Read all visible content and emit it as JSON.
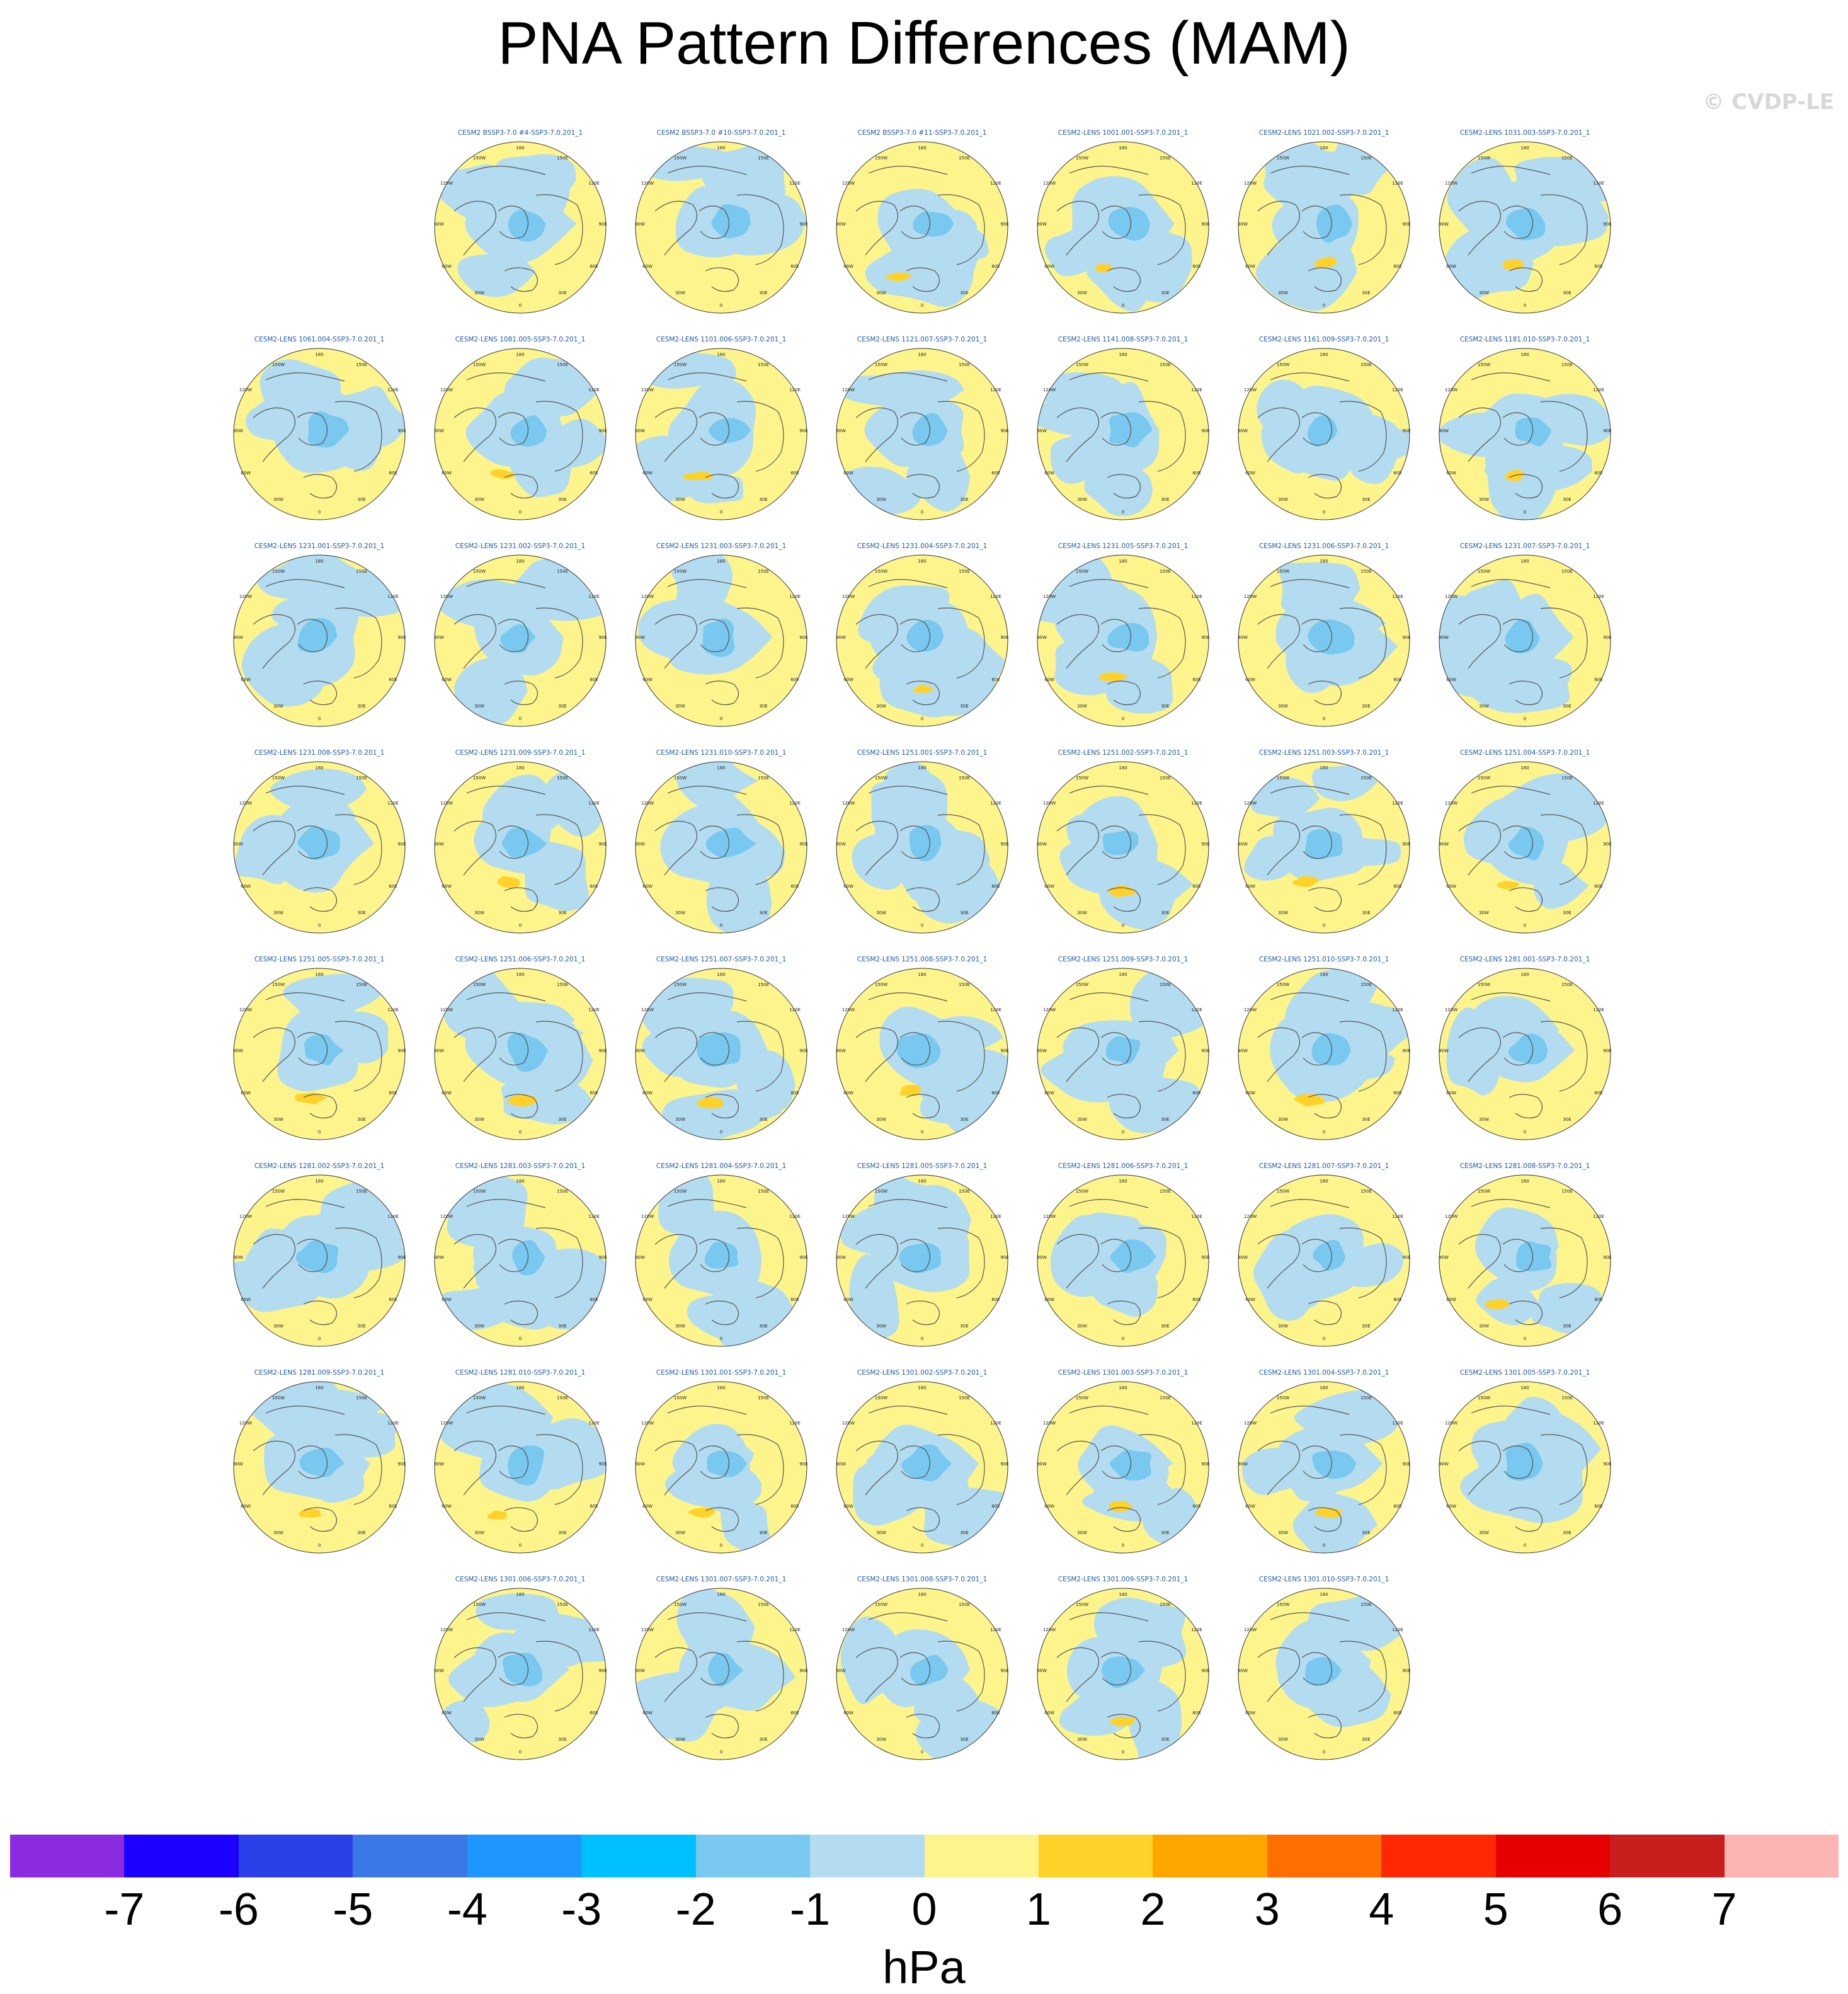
{
  "title": "PNA Pattern Differences (MAM)",
  "watermark": "© CVDP-LE",
  "panel_labels": {
    "top": "180",
    "upper_left": "150W",
    "upper_right": "150E",
    "left_upper": "120W",
    "right_upper": "120E",
    "left_mid": "90W",
    "right_mid": "90E",
    "left_lower": "60W",
    "right_lower": "60E",
    "lower_left": "30W",
    "lower_right": "30E",
    "bottom": "0"
  },
  "panels": [
    {
      "title": "CESM2 BSSP3-7.0 #4-SSP3-7.0.201_1",
      "row": 0,
      "col": 1
    },
    {
      "title": "CESM2 BSSP3-7.0 #10-SSP3-7.0.201_1",
      "row": 0,
      "col": 2
    },
    {
      "title": "CESM2 BSSP3-7.0 #11-SSP3-7.0.201_1",
      "row": 0,
      "col": 3
    },
    {
      "title": "CESM2-LENS 1001.001-SSP3-7.0.201_1",
      "row": 0,
      "col": 4
    },
    {
      "title": "CESM2-LENS 1021.002-SSP3-7.0.201_1",
      "row": 0,
      "col": 5
    },
    {
      "title": "CESM2-LENS 1031.003-SSP3-7.0.201_1",
      "row": 0,
      "col": 6
    },
    {
      "title": "CESM2-LENS 1061.004-SSP3-7.0.201_1",
      "row": 1,
      "col": 0
    },
    {
      "title": "CESM2-LENS 1081.005-SSP3-7.0.201_1",
      "row": 1,
      "col": 1
    },
    {
      "title": "CESM2-LENS 1101.006-SSP3-7.0.201_1",
      "row": 1,
      "col": 2
    },
    {
      "title": "CESM2-LENS 1121.007-SSP3-7.0.201_1",
      "row": 1,
      "col": 3
    },
    {
      "title": "CESM2-LENS 1141.008-SSP3-7.0.201_1",
      "row": 1,
      "col": 4
    },
    {
      "title": "CESM2-LENS 1161.009-SSP3-7.0.201_1",
      "row": 1,
      "col": 5
    },
    {
      "title": "CESM2-LENS 1181.010-SSP3-7.0.201_1",
      "row": 1,
      "col": 6
    },
    {
      "title": "CESM2-LENS 1231.001-SSP3-7.0.201_1",
      "row": 2,
      "col": 0
    },
    {
      "title": "CESM2-LENS 1231.002-SSP3-7.0.201_1",
      "row": 2,
      "col": 1
    },
    {
      "title": "CESM2-LENS 1231.003-SSP3-7.0.201_1",
      "row": 2,
      "col": 2
    },
    {
      "title": "CESM2-LENS 1231.004-SSP3-7.0.201_1",
      "row": 2,
      "col": 3
    },
    {
      "title": "CESM2-LENS 1231.005-SSP3-7.0.201_1",
      "row": 2,
      "col": 4
    },
    {
      "title": "CESM2-LENS 1231.006-SSP3-7.0.201_1",
      "row": 2,
      "col": 5
    },
    {
      "title": "CESM2-LENS 1231.007-SSP3-7.0.201_1",
      "row": 2,
      "col": 6
    },
    {
      "title": "CESM2-LENS 1231.008-SSP3-7.0.201_1",
      "row": 3,
      "col": 0
    },
    {
      "title": "CESM2-LENS 1231.009-SSP3-7.0.201_1",
      "row": 3,
      "col": 1
    },
    {
      "title": "CESM2-LENS 1231.010-SSP3-7.0.201_1",
      "row": 3,
      "col": 2
    },
    {
      "title": "CESM2-LENS 1251.001-SSP3-7.0.201_1",
      "row": 3,
      "col": 3
    },
    {
      "title": "CESM2-LENS 1251.002-SSP3-7.0.201_1",
      "row": 3,
      "col": 4
    },
    {
      "title": "CESM2-LENS 1251.003-SSP3-7.0.201_1",
      "row": 3,
      "col": 5
    },
    {
      "title": "CESM2-LENS 1251.004-SSP3-7.0.201_1",
      "row": 3,
      "col": 6
    },
    {
      "title": "CESM2-LENS 1251.005-SSP3-7.0.201_1",
      "row": 4,
      "col": 0
    },
    {
      "title": "CESM2-LENS 1251.006-SSP3-7.0.201_1",
      "row": 4,
      "col": 1
    },
    {
      "title": "CESM2-LENS 1251.007-SSP3-7.0.201_1",
      "row": 4,
      "col": 2
    },
    {
      "title": "CESM2-LENS 1251.008-SSP3-7.0.201_1",
      "row": 4,
      "col": 3
    },
    {
      "title": "CESM2-LENS 1251.009-SSP3-7.0.201_1",
      "row": 4,
      "col": 4
    },
    {
      "title": "CESM2-LENS 1251.010-SSP3-7.0.201_1",
      "row": 4,
      "col": 5
    },
    {
      "title": "CESM2-LENS 1281.001-SSP3-7.0.201_1",
      "row": 4,
      "col": 6
    },
    {
      "title": "CESM2-LENS 1281.002-SSP3-7.0.201_1",
      "row": 5,
      "col": 0
    },
    {
      "title": "CESM2-LENS 1281.003-SSP3-7.0.201_1",
      "row": 5,
      "col": 1
    },
    {
      "title": "CESM2-LENS 1281.004-SSP3-7.0.201_1",
      "row": 5,
      "col": 2
    },
    {
      "title": "CESM2-LENS 1281.005-SSP3-7.0.201_1",
      "row": 5,
      "col": 3
    },
    {
      "title": "CESM2-LENS 1281.006-SSP3-7.0.201_1",
      "row": 5,
      "col": 4
    },
    {
      "title": "CESM2-LENS 1281.007-SSP3-7.0.201_1",
      "row": 5,
      "col": 5
    },
    {
      "title": "CESM2-LENS 1281.008-SSP3-7.0.201_1",
      "row": 5,
      "col": 6
    },
    {
      "title": "CESM2-LENS 1281.009-SSP3-7.0.201_1",
      "row": 6,
      "col": 0
    },
    {
      "title": "CESM2-LENS 1281.010-SSP3-7.0.201_1",
      "row": 6,
      "col": 1
    },
    {
      "title": "CESM2-LENS 1301.001-SSP3-7.0.201_1",
      "row": 6,
      "col": 2
    },
    {
      "title": "CESM2-LENS 1301.002-SSP3-7.0.201_1",
      "row": 6,
      "col": 3
    },
    {
      "title": "CESM2-LENS 1301.003-SSP3-7.0.201_1",
      "row": 6,
      "col": 4
    },
    {
      "title": "CESM2-LENS 1301.004-SSP3-7.0.201_1",
      "row": 6,
      "col": 5
    },
    {
      "title": "CESM2-LENS 1301.005-SSP3-7.0.201_1",
      "row": 6,
      "col": 6
    },
    {
      "title": "CESM2-LENS 1301.006-SSP3-7.0.201_1",
      "row": 7,
      "col": 1
    },
    {
      "title": "CESM2-LENS 1301.007-SSP3-7.0.201_1",
      "row": 7,
      "col": 2
    },
    {
      "title": "CESM2-LENS 1301.008-SSP3-7.0.201_1",
      "row": 7,
      "col": 3
    },
    {
      "title": "CESM2-LENS 1301.009-SSP3-7.0.201_1",
      "row": 7,
      "col": 4
    },
    {
      "title": "CESM2-LENS 1301.010-SSP3-7.0.201_1",
      "row": 7,
      "col": 5
    }
  ],
  "colorbar": {
    "units": "hPa",
    "colors": [
      "#8a2be2",
      "#1c00ff",
      "#2a40e8",
      "#3a78e8",
      "#1e96ff",
      "#00c0ff",
      "#78c8f0",
      "#b4dcf0",
      "#fdf58c",
      "#ffd22a",
      "#ffa500",
      "#ff6e00",
      "#ff2800",
      "#e60000",
      "#c81e1e",
      "#ffb4b4"
    ],
    "tick_labels": [
      "-7",
      "-6",
      "-5",
      "-4",
      "-3",
      "-2",
      "-1",
      "0",
      "1",
      "2",
      "3",
      "4",
      "5",
      "6",
      "7"
    ]
  }
}
